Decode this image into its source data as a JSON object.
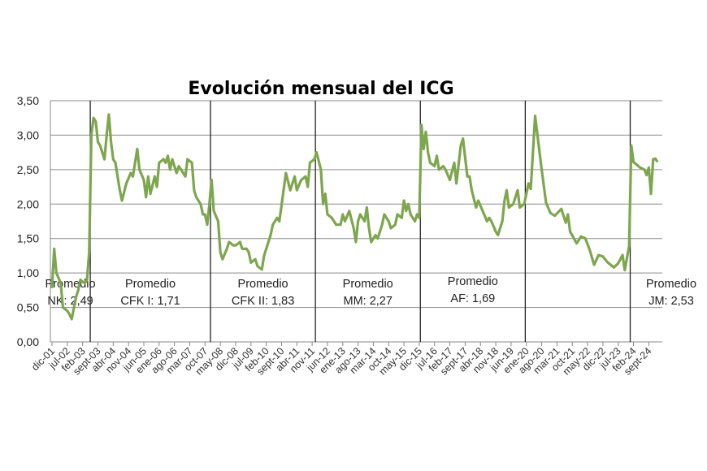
{
  "chart_data": {
    "type": "line",
    "title": "Evolución mensual del ICG",
    "xlabel": "",
    "ylabel": "",
    "ylim": [
      0,
      3.5
    ],
    "yticks": [
      "0,00",
      "0,50",
      "1,00",
      "1,50",
      "2,00",
      "2,50",
      "3,00",
      "3,50"
    ],
    "grid": true,
    "line_color": "#7ea64e",
    "xtick_labels": [
      "dic-01",
      "jul-02",
      "feb-03",
      "sept-03",
      "abr-04",
      "nov-04",
      "jun-05",
      "ene-06",
      "ago-06",
      "mar-07",
      "oct-07",
      "may-08",
      "dic-08",
      "jul-09",
      "feb-10",
      "sept-10",
      "abr-11",
      "nov-11",
      "jun-12",
      "ene-13",
      "ago-13",
      "mar-14",
      "oct-14",
      "may-15",
      "dic-15",
      "jul-16",
      "feb-17",
      "sept-17",
      "abr-18",
      "nov-18",
      "jun-19",
      "ene-20",
      "ago-20",
      "mar-21",
      "oct-21",
      "may-22",
      "dic-22",
      "jul-23",
      "feb-24",
      "sept-24"
    ],
    "series": [
      {
        "x": [
          "2001-12",
          "2002-01",
          "2002-02",
          "2002-04",
          "2002-05",
          "2002-07",
          "2002-08",
          "2002-09",
          "2002-11",
          "2002-12",
          "2003-01",
          "2003-03",
          "2003-04",
          "2003-05",
          "2003-06",
          "2003-07",
          "2003-08",
          "2003-09",
          "2003-10",
          "2003-12",
          "2004-01",
          "2004-02",
          "2004-03",
          "2004-04",
          "2004-05",
          "2004-07",
          "2004-08",
          "2004-10",
          "2004-12",
          "2005-01",
          "2005-03",
          "2005-04",
          "2005-06",
          "2005-07",
          "2005-08",
          "2005-09",
          "2005-11",
          "2005-12",
          "2006-01",
          "2006-03",
          "2006-04",
          "2006-05",
          "2006-06",
          "2006-07",
          "2006-09",
          "2006-10",
          "2006-11",
          "2007-01",
          "2007-02",
          "2007-04",
          "2007-05",
          "2007-06",
          "2007-08",
          "2007-09",
          "2007-10",
          "2007-11",
          "2007-12",
          "2008-01",
          "2008-02",
          "2008-04",
          "2008-05",
          "2008-06",
          "2008-08",
          "2008-09",
          "2008-11",
          "2008-12",
          "2009-02",
          "2009-03",
          "2009-05",
          "2009-06",
          "2009-07",
          "2009-09",
          "2009-10",
          "2009-12",
          "2010-01",
          "2010-02",
          "2010-04",
          "2010-05",
          "2010-07",
          "2010-08",
          "2010-11",
          "2011-01",
          "2011-03",
          "2011-04",
          "2011-06",
          "2011-08",
          "2011-09",
          "2011-10",
          "2011-12",
          "2012-01",
          "2012-03",
          "2012-04",
          "2012-05",
          "2012-06",
          "2012-08",
          "2012-10",
          "2012-12",
          "2013-01",
          "2013-02",
          "2013-04",
          "2013-06",
          "2013-07",
          "2013-08",
          "2013-09",
          "2013-11",
          "2013-12",
          "2014-01",
          "2014-02",
          "2014-04",
          "2014-05",
          "2014-07",
          "2014-08",
          "2014-10",
          "2014-11",
          "2015-01",
          "2015-02",
          "2015-04",
          "2015-05",
          "2015-06",
          "2015-07",
          "2015-08",
          "2015-10",
          "2015-11",
          "2015-12",
          "2016-01",
          "2016-02",
          "2016-03",
          "2016-04",
          "2016-05",
          "2016-07",
          "2016-08",
          "2016-09",
          "2016-11",
          "2016-12",
          "2017-02",
          "2017-04",
          "2017-05",
          "2017-07",
          "2017-08",
          "2017-10",
          "2017-11",
          "2017-12",
          "2018-02",
          "2018-03",
          "2018-05",
          "2018-07",
          "2018-08",
          "2018-09",
          "2018-11",
          "2018-12",
          "2019-02",
          "2019-03",
          "2019-04",
          "2019-05",
          "2019-07",
          "2019-09",
          "2019-10",
          "2019-12",
          "2020-02",
          "2020-03",
          "2020-05",
          "2020-08",
          "2020-10",
          "2020-12",
          "2021-02",
          "2021-05",
          "2021-07",
          "2021-08",
          "2021-09",
          "2021-12",
          "2022-02",
          "2022-04",
          "2022-06",
          "2022-08",
          "2022-10",
          "2022-12",
          "2023-02",
          "2023-05",
          "2023-07",
          "2023-09",
          "2023-10",
          "2023-12",
          "2024-01",
          "2024-02",
          "2024-05",
          "2024-07",
          "2024-08",
          "2024-09",
          "2024-10",
          "2024-11",
          "2024-12",
          "2025-01"
        ],
        "y": [
          0.78,
          1.35,
          1.0,
          0.85,
          0.5,
          0.45,
          0.4,
          0.33,
          0.65,
          0.75,
          0.9,
          0.85,
          0.9,
          1.3,
          3.0,
          3.25,
          3.2,
          2.9,
          2.85,
          2.65,
          3.0,
          3.3,
          2.9,
          2.65,
          2.6,
          2.2,
          2.05,
          2.3,
          2.45,
          2.4,
          2.8,
          2.5,
          2.35,
          2.1,
          2.4,
          2.15,
          2.4,
          2.25,
          2.6,
          2.65,
          2.6,
          2.7,
          2.5,
          2.65,
          2.45,
          2.55,
          2.5,
          2.4,
          2.65,
          2.6,
          2.2,
          2.1,
          2.0,
          1.85,
          1.85,
          1.7,
          2.0,
          2.35,
          1.9,
          1.75,
          1.3,
          1.2,
          1.35,
          1.45,
          1.4,
          1.4,
          1.45,
          1.35,
          1.35,
          1.3,
          1.15,
          1.2,
          1.1,
          1.05,
          1.25,
          1.35,
          1.55,
          1.7,
          1.8,
          1.75,
          2.45,
          2.2,
          2.4,
          2.2,
          2.35,
          2.4,
          2.25,
          2.6,
          2.65,
          2.75,
          2.5,
          2.0,
          2.15,
          1.85,
          1.8,
          1.7,
          1.7,
          1.85,
          1.75,
          1.9,
          1.65,
          1.45,
          1.75,
          1.85,
          1.75,
          1.95,
          1.65,
          1.45,
          1.55,
          1.5,
          1.7,
          1.85,
          1.75,
          1.65,
          1.7,
          1.85,
          1.8,
          2.05,
          1.9,
          2.0,
          1.85,
          1.75,
          1.85,
          1.8,
          3.15,
          2.8,
          3.05,
          2.75,
          2.6,
          2.55,
          2.7,
          2.5,
          2.55,
          2.5,
          2.35,
          2.6,
          2.3,
          2.85,
          2.95,
          2.4,
          2.4,
          2.2,
          1.95,
          2.05,
          1.9,
          1.75,
          1.8,
          1.75,
          1.6,
          1.55,
          1.75,
          2.05,
          2.2,
          1.95,
          2.0,
          2.2,
          1.95,
          2.0,
          2.3,
          2.22,
          3.28,
          2.5,
          2.02,
          1.87,
          1.83,
          1.93,
          1.73,
          1.85,
          1.6,
          1.43,
          1.53,
          1.5,
          1.33,
          1.12,
          1.26,
          1.24,
          1.16,
          1.08,
          1.14,
          1.26,
          1.04,
          1.39,
          2.85,
          2.61,
          2.53,
          2.5,
          2.42,
          2.53,
          2.15,
          2.65,
          2.66,
          2.61
        ]
      }
    ],
    "dividers": [
      "2003-05",
      "2007-12",
      "2011-12",
      "2015-12",
      "2019-12",
      "2023-12"
    ],
    "annotations": [
      {
        "line1": "Promedio",
        "line2": "NK: 2,49"
      },
      {
        "line1": "Promedio",
        "line2": "CFK I: 1,71"
      },
      {
        "line1": "Promedio",
        "line2": "CFK II: 1,83"
      },
      {
        "line1": "Promedio",
        "line2": "MM: 2,27"
      },
      {
        "line1": "Promedio",
        "line2": "AF: 1,69"
      },
      {
        "line1": "Promedio",
        "line2": "JM: 2,53"
      }
    ]
  }
}
